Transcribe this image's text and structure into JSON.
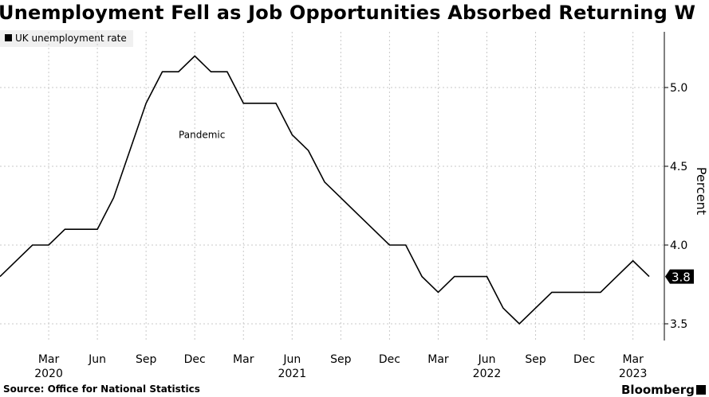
{
  "chart_data": {
    "type": "line",
    "title": "Unemployment Fell as Job Opportunities Absorbed Returning W",
    "ylabel": "Percent",
    "xlabel": "",
    "legend": {
      "placement": "top-left",
      "entries": [
        "UK unemployment rate"
      ]
    },
    "grid": true,
    "ylim": [
      3.35,
      5.35
    ],
    "yticks": [
      3.5,
      4.0,
      4.5,
      5.0
    ],
    "ytick_labels": [
      "3.5",
      "4.0",
      "4.5",
      "5.0"
    ],
    "x_ticks": [
      {
        "date": "2020-03",
        "label": "Mar",
        "year": "2020"
      },
      {
        "date": "2020-06",
        "label": "Jun",
        "year": ""
      },
      {
        "date": "2020-09",
        "label": "Sep",
        "year": ""
      },
      {
        "date": "2020-12",
        "label": "Dec",
        "year": ""
      },
      {
        "date": "2021-03",
        "label": "Mar",
        "year": ""
      },
      {
        "date": "2021-06",
        "label": "Jun",
        "year": "2021"
      },
      {
        "date": "2021-09",
        "label": "Sep",
        "year": ""
      },
      {
        "date": "2021-12",
        "label": "Dec",
        "year": ""
      },
      {
        "date": "2022-03",
        "label": "Mar",
        "year": ""
      },
      {
        "date": "2022-06",
        "label": "Jun",
        "year": "2022"
      },
      {
        "date": "2022-09",
        "label": "Sep",
        "year": ""
      },
      {
        "date": "2022-12",
        "label": "Dec",
        "year": ""
      },
      {
        "date": "2023-03",
        "label": "Mar",
        "year": "2023"
      }
    ],
    "series": [
      {
        "name": "UK unemployment rate",
        "color": "#000000",
        "x": [
          "2019-12",
          "2020-01",
          "2020-02",
          "2020-03",
          "2020-04",
          "2020-05",
          "2020-06",
          "2020-07",
          "2020-08",
          "2020-09",
          "2020-10",
          "2020-11",
          "2020-12",
          "2021-01",
          "2021-02",
          "2021-03",
          "2021-04",
          "2021-05",
          "2021-06",
          "2021-07",
          "2021-08",
          "2021-09",
          "2021-10",
          "2021-11",
          "2021-12",
          "2022-01",
          "2022-02",
          "2022-03",
          "2022-04",
          "2022-05",
          "2022-06",
          "2022-07",
          "2022-08",
          "2022-09",
          "2022-10",
          "2022-11",
          "2022-12",
          "2023-01",
          "2023-02",
          "2023-03",
          "2023-04"
        ],
        "values": [
          3.8,
          3.9,
          4.0,
          4.0,
          4.1,
          4.1,
          4.1,
          4.3,
          4.6,
          4.9,
          5.1,
          5.1,
          5.2,
          5.1,
          5.1,
          4.9,
          4.9,
          4.9,
          4.7,
          4.6,
          4.4,
          4.3,
          4.2,
          4.1,
          4.0,
          4.0,
          3.8,
          3.7,
          3.8,
          3.8,
          3.8,
          3.6,
          3.5,
          3.6,
          3.7,
          3.7,
          3.7,
          3.7,
          3.8,
          3.9,
          3.8
        ]
      }
    ],
    "annotations": [
      {
        "text": "Pandemic",
        "date": "2020-12",
        "value": 4.68
      }
    ],
    "last_value_label": "3.8"
  },
  "source": "Source: Office for National Statistics",
  "brand": "Bloomberg"
}
